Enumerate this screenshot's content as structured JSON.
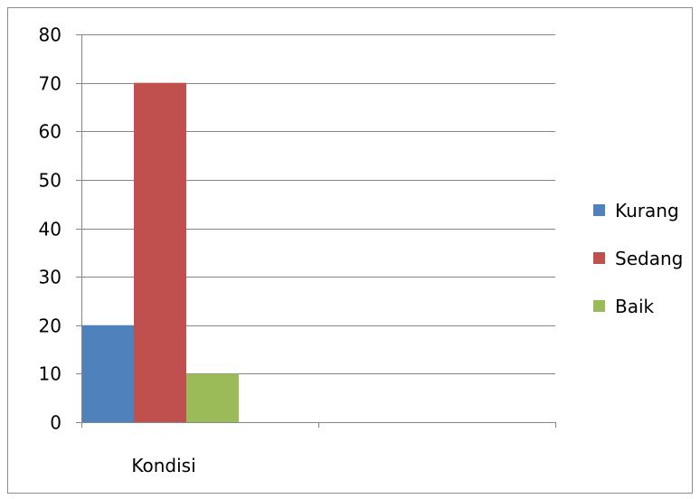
{
  "chart_data": {
    "type": "bar",
    "categories": [
      "Kondisi",
      ""
    ],
    "series": [
      {
        "name": "Kurang",
        "color": "#4f81bd",
        "values": [
          20,
          null
        ]
      },
      {
        "name": "Sedang",
        "color": "#c0504d",
        "values": [
          70,
          null
        ]
      },
      {
        "name": "Baik",
        "color": "#9bbb59",
        "values": [
          10,
          null
        ]
      }
    ],
    "ylim": [
      0,
      80
    ],
    "yticks": [
      0,
      10,
      20,
      30,
      40,
      50,
      60,
      70,
      80
    ],
    "grid": true,
    "legend_position": "right"
  }
}
